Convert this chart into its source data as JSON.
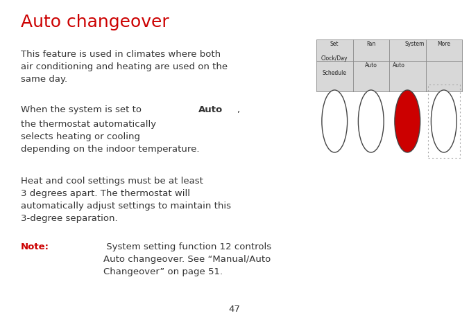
{
  "title": "Auto changeover",
  "title_color": "#cc0000",
  "title_fontsize": 18,
  "body_color": "#333333",
  "body_fontsize": 9.5,
  "note_color": "#cc0000",
  "background_color": "#ffffff",
  "page_number": "47",
  "para1": "This feature is used in climates where both\nair conditioning and heating are used on the\nsame day.",
  "para2_line1_prefix": "When the system is set to ",
  "para2_line1_bold": "Auto",
  "para2_line1_suffix": ",",
  "para2_rest": "the thermostat automatically\nselects heating or cooling\ndepending on the indoor temperature.",
  "para3": "Heat and cool settings must be at least\n3 degrees apart. The thermostat will\nautomatically adjust settings to maintain this\n3-degree separation.",
  "para4_note": "Note:",
  "para4_text": " System setting function 12 controls\nAuto changeover. See “Manual/Auto\nChangeover” on page 51.",
  "button_colors": [
    "#ffffff",
    "#ffffff",
    "#cc0000",
    "#ffffff"
  ]
}
